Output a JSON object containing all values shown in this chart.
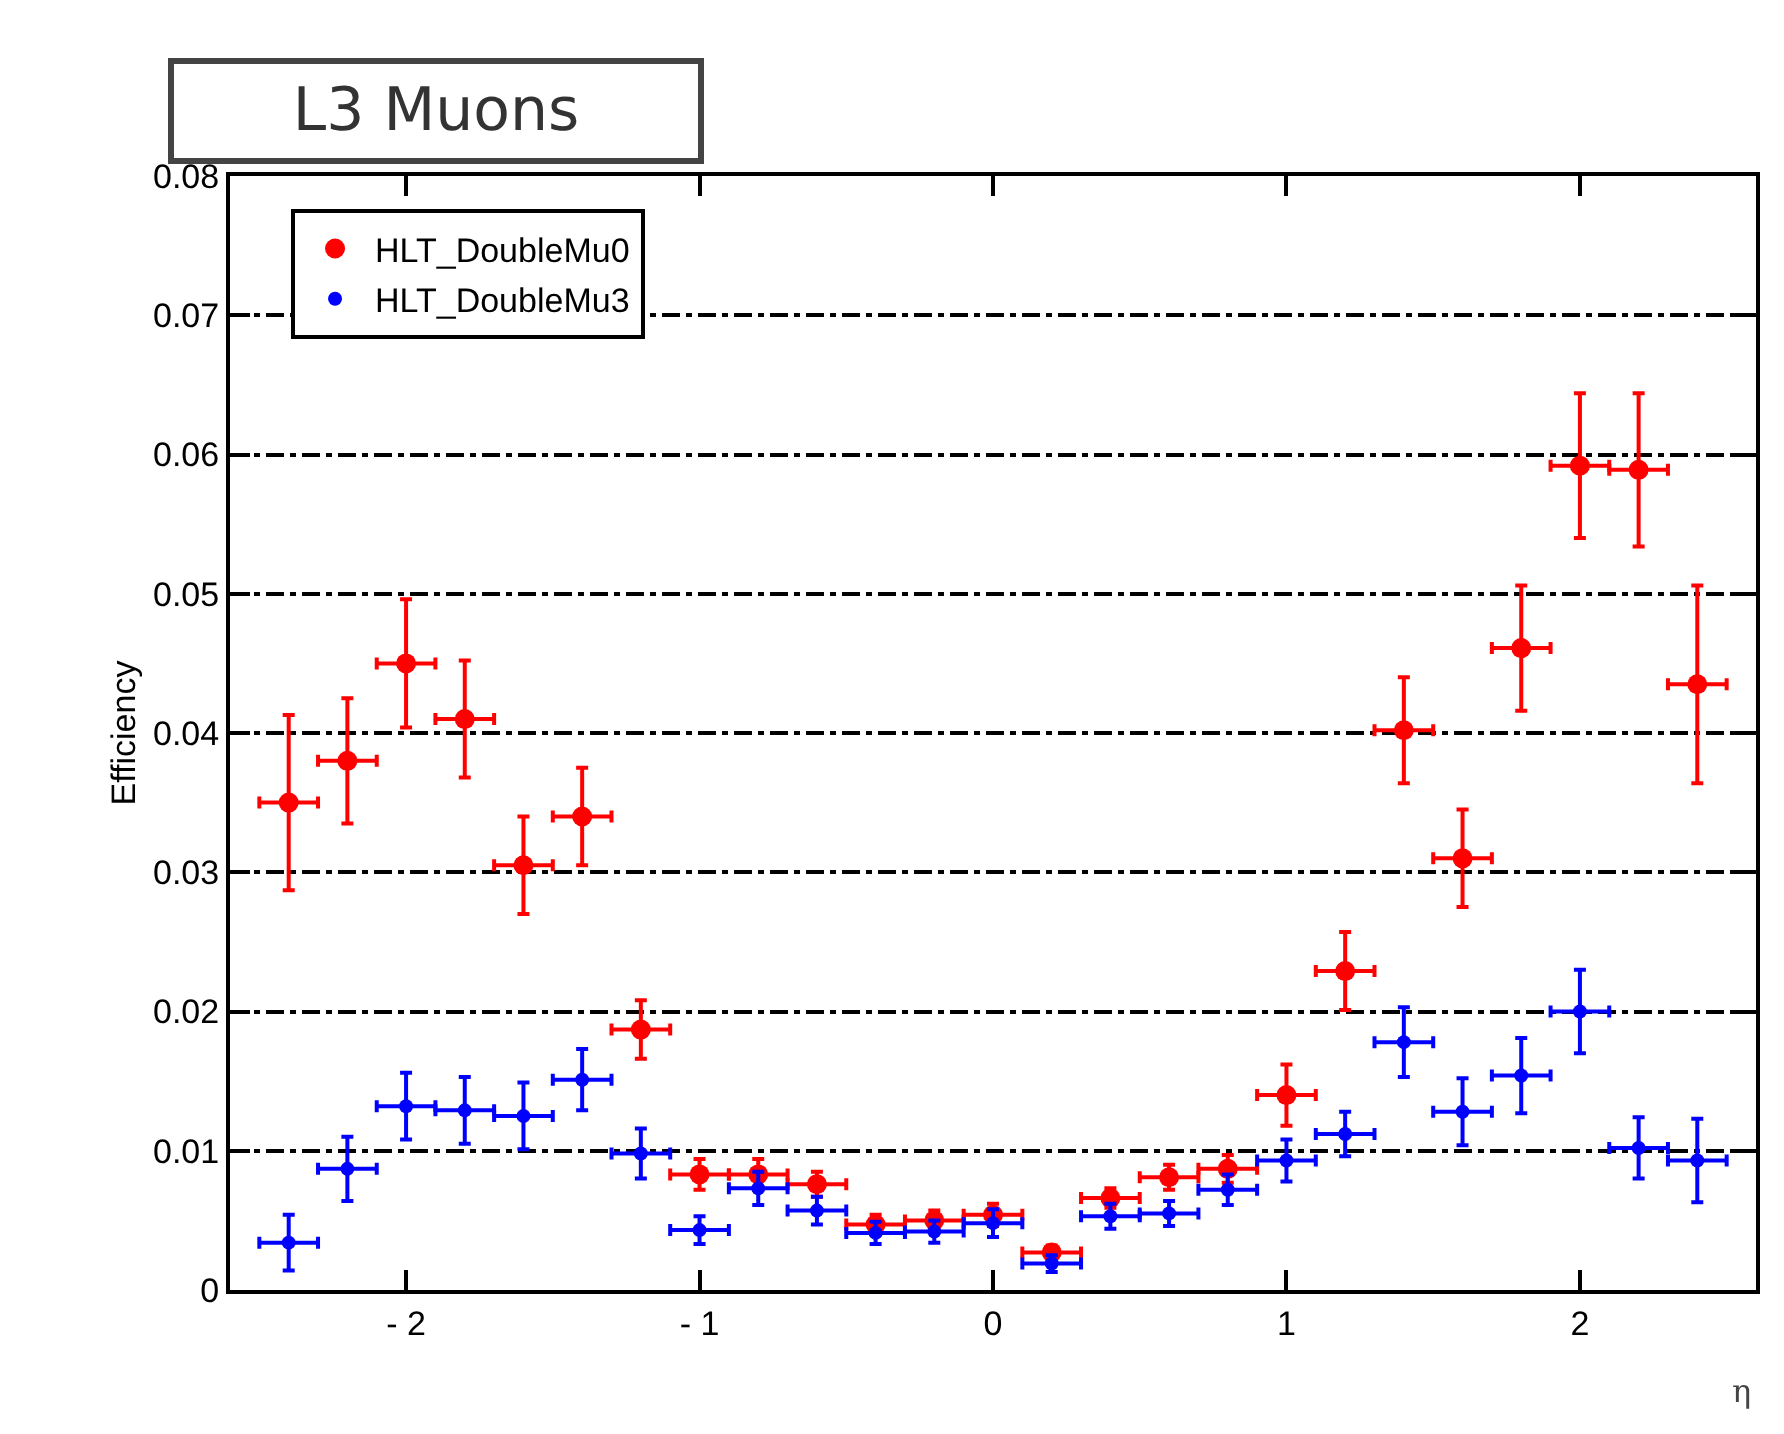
{
  "chart_data": {
    "type": "scatter",
    "title": "L3 Muons",
    "xlabel": "η",
    "ylabel": "Efficiency",
    "xlim": [
      -2.6,
      2.6
    ],
    "xticks": [
      {
        "value": -2,
        "label": "- 2"
      },
      {
        "value": -1,
        "label": "- 1"
      },
      0,
      1,
      2
    ],
    "ylim": [
      0,
      0.08
    ],
    "yticks": [
      0,
      0.01,
      0.02,
      0.03,
      0.04,
      0.05,
      0.06,
      0.07,
      0.08
    ],
    "grid": "y",
    "legend": "top left",
    "marker": "circle",
    "x": [
      -2.4,
      -2.2,
      -2.0,
      -1.8,
      -1.6,
      -1.4,
      -1.2,
      -1.0,
      -0.8,
      -0.6,
      -0.4,
      -0.2,
      0,
      0.2,
      0.4,
      0.6,
      0.8,
      1.0,
      1.2,
      1.4,
      1.6,
      1.8,
      2.0,
      2.2,
      2.4
    ],
    "series": [
      {
        "name": "HLT_DoubleMu0",
        "color": "#ff0000",
        "values": [
          0.035,
          0.038,
          0.045,
          0.041,
          0.0305,
          0.034,
          0.0187,
          0.0083,
          0.0083,
          0.0076,
          0.0047,
          0.005,
          0.0054,
          0.0027,
          0.0066,
          0.0081,
          0.0087,
          0.014,
          0.0229,
          0.0402,
          0.031,
          0.0461,
          0.0592,
          0.0589,
          0.0435
        ],
        "errors": [
          0.0063,
          0.0045,
          0.0046,
          0.0042,
          0.0035,
          0.0035,
          0.0021,
          0.0011,
          0.0011,
          0.0009,
          0.0007,
          0.0007,
          0.0008,
          0.0005,
          0.0007,
          0.0009,
          0.001,
          0.0022,
          0.0028,
          0.0038,
          0.0035,
          0.0045,
          0.0052,
          0.0055,
          0.0071
        ],
        "xerrors": [
          0.1,
          0.1,
          0.1,
          0.1,
          0.1,
          0.1,
          0.1,
          0.1,
          0.1,
          0.1,
          0.1,
          0.1,
          0.1,
          0.1,
          0.1,
          0.1,
          0.1,
          0.1,
          0.1,
          0.1,
          0.1,
          0.1,
          0.1,
          0.1,
          0.1
        ]
      },
      {
        "name": "HLT_DoubleMu3",
        "color": "#0000ff",
        "values": [
          0.0034,
          0.0087,
          0.0132,
          0.0129,
          0.0125,
          0.0151,
          0.0098,
          0.0043,
          0.0073,
          0.0057,
          0.0041,
          0.0042,
          0.0048,
          0.0019,
          0.0053,
          0.0055,
          0.0072,
          0.0093,
          0.0112,
          0.0178,
          0.0128,
          0.0154,
          0.02,
          0.0102,
          0.0093
        ],
        "errors": [
          0.002,
          0.0023,
          0.0024,
          0.0024,
          0.0024,
          0.0022,
          0.0018,
          0.001,
          0.0012,
          0.001,
          0.0008,
          0.0008,
          0.001,
          0.0006,
          0.0009,
          0.0009,
          0.0011,
          0.0015,
          0.0016,
          0.0025,
          0.0024,
          0.0027,
          0.003,
          0.0022,
          0.003
        ],
        "xerrors": [
          0.1,
          0.1,
          0.1,
          0.1,
          0.1,
          0.1,
          0.1,
          0.1,
          0.1,
          0.1,
          0.1,
          0.1,
          0.1,
          0.1,
          0.1,
          0.1,
          0.1,
          0.1,
          0.1,
          0.1,
          0.1,
          0.1,
          0.1,
          0.1,
          0.1
        ]
      }
    ]
  }
}
